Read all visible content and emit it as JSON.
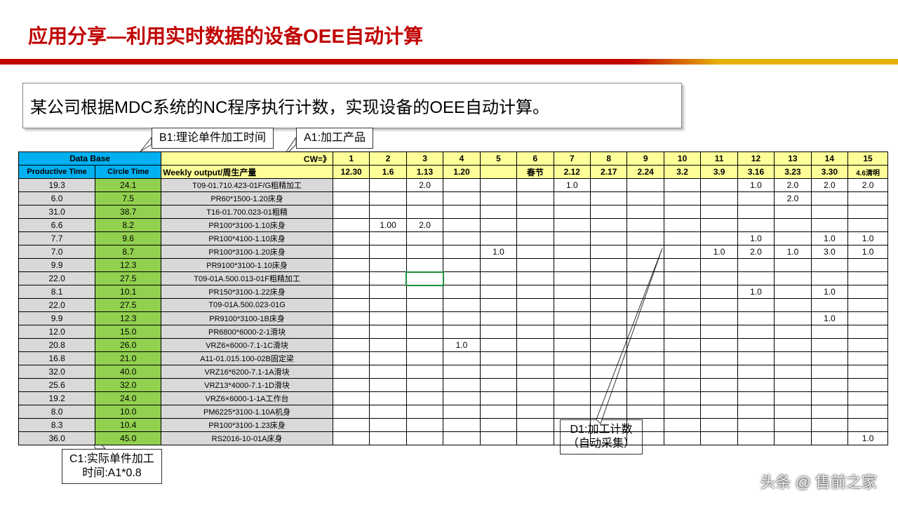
{
  "title": "应用分享—利用实时数据的设备OEE自动计算",
  "description": "某公司根据MDC系统的NC程序执行计数，实现设备的OEE自动计算。",
  "callouts": {
    "b1": "B1:理论单件加工时间",
    "a1": "A1:加工产品",
    "c1": "C1:实际单件加工\n时间:A1*0.8",
    "d1": "D1:加工计数\n（自动采集）"
  },
  "table": {
    "header_labels": {
      "data_base": "Data Base",
      "productive_time": "Productive Time",
      "circle_time": "Circle Time",
      "weekly_output": "Weekly output/周生产量",
      "cw_label": "CW=》"
    },
    "cw_numbers": [
      "1",
      "2",
      "3",
      "4",
      "5",
      "6",
      "7",
      "8",
      "9",
      "10",
      "11",
      "12",
      "13",
      "14",
      "15"
    ],
    "cw_dates": [
      "12.30",
      "1.6",
      "1.13",
      "1.20",
      "",
      "春节",
      "2.12",
      "2.17",
      "2.24",
      "3.2",
      "3.9",
      "3.16",
      "3.23",
      "3.30",
      "4.6清明"
    ],
    "colors": {
      "header_blue": "#00b0f0",
      "header_yellow": "#ffff99",
      "grey": "#d9d9d9",
      "green": "#92d050",
      "border": "#000000"
    },
    "rows": [
      {
        "pt": "19.3",
        "ct": "24.1",
        "wo": "T09-01.710.423-01F/G粗精加工",
        "v": [
          "",
          "",
          "2.0",
          "",
          "",
          "",
          "1.0",
          "",
          "",
          "",
          "",
          "1.0",
          "2.0",
          "2.0",
          "2.0"
        ]
      },
      {
        "pt": "6.0",
        "ct": "7.5",
        "wo": "PR60*1500-1.20床身",
        "v": [
          "",
          "",
          "",
          "",
          "",
          "",
          "",
          "",
          "",
          "",
          "",
          "",
          "2.0",
          "",
          ""
        ]
      },
      {
        "pt": "31.0",
        "ct": "38.7",
        "wo": "T16-01.700.023-01粗精",
        "v": [
          "",
          "",
          "",
          "",
          "",
          "",
          "",
          "",
          "",
          "",
          "",
          "",
          "",
          "",
          ""
        ]
      },
      {
        "pt": "6.6",
        "ct": "8.2",
        "wo": "PR100*3100-1.10床身",
        "v": [
          "",
          "1.00",
          "2.0",
          "",
          "",
          "",
          "",
          "",
          "",
          "",
          "",
          "",
          "",
          "",
          ""
        ]
      },
      {
        "pt": "7.7",
        "ct": "9.6",
        "wo": "PR100*4100-1.10床身",
        "v": [
          "",
          "",
          "",
          "",
          "",
          "",
          "",
          "",
          "",
          "",
          "",
          "1.0",
          "",
          "1.0",
          "1.0"
        ]
      },
      {
        "pt": "7.0",
        "ct": "8.7",
        "wo": "PR100*3100-1.20床身",
        "v": [
          "",
          "",
          "",
          "",
          "1.0",
          "",
          "",
          "",
          "",
          "",
          "1.0",
          "2.0",
          "1.0",
          "3.0",
          "1.0"
        ]
      },
      {
        "pt": "9.9",
        "ct": "12.3",
        "wo": "PR9100*3100-1.10床身",
        "v": [
          "",
          "",
          "",
          "",
          "",
          "",
          "",
          "",
          "",
          "",
          "",
          "",
          "",
          "",
          ""
        ]
      },
      {
        "pt": "22.0",
        "ct": "27.5",
        "wo": "T09-01A.500.013-01F粗精加工",
        "v": [
          "",
          "",
          "",
          "",
          "",
          "",
          "",
          "",
          "",
          "",
          "",
          "",
          "",
          "",
          ""
        ],
        "sel": 2
      },
      {
        "pt": "8.1",
        "ct": "10.1",
        "wo": "PR150*3100-1.22床身",
        "v": [
          "",
          "",
          "",
          "",
          "",
          "",
          "",
          "",
          "",
          "",
          "",
          "1.0",
          "",
          "1.0",
          ""
        ]
      },
      {
        "pt": "22.0",
        "ct": "27.5",
        "wo": "T09-01A.500.023-01G",
        "v": [
          "",
          "",
          "",
          "",
          "",
          "",
          "",
          "",
          "",
          "",
          "",
          "",
          "",
          "",
          ""
        ]
      },
      {
        "pt": "9.9",
        "ct": "12.3",
        "wo": "PR9100*3100-1B床身",
        "v": [
          "",
          "",
          "",
          "",
          "",
          "",
          "",
          "",
          "",
          "",
          "",
          "",
          "",
          "1.0",
          ""
        ]
      },
      {
        "pt": "12.0",
        "ct": "15.0",
        "wo": "PR6800*6000-2-1滑块",
        "v": [
          "",
          "",
          "",
          "",
          "",
          "",
          "",
          "",
          "",
          "",
          "",
          "",
          "",
          "",
          ""
        ]
      },
      {
        "pt": "20.8",
        "ct": "26.0",
        "wo": "VRZ6×6000-7.1-1C滑块",
        "v": [
          "",
          "",
          "",
          "1.0",
          "",
          "",
          "",
          "",
          "",
          "",
          "",
          "",
          "",
          "",
          ""
        ]
      },
      {
        "pt": "16.8",
        "ct": "21.0",
        "wo": "A11-01.015.100-02B固定梁",
        "v": [
          "",
          "",
          "",
          "",
          "",
          "",
          "",
          "",
          "",
          "",
          "",
          "",
          "",
          "",
          ""
        ]
      },
      {
        "pt": "32.0",
        "ct": "40.0",
        "wo": "VRZ16*6200-7.1-1A滑块",
        "v": [
          "",
          "",
          "",
          "",
          "",
          "",
          "",
          "",
          "",
          "",
          "",
          "",
          "",
          "",
          ""
        ]
      },
      {
        "pt": "25.6",
        "ct": "32.0",
        "wo": "VRZ13*4000-7.1-1D滑块",
        "v": [
          "",
          "",
          "",
          "",
          "",
          "",
          "",
          "",
          "",
          "",
          "",
          "",
          "",
          "",
          ""
        ]
      },
      {
        "pt": "19.2",
        "ct": "24.0",
        "wo": "VRZ6×6000-1-1A工作台",
        "v": [
          "",
          "",
          "",
          "",
          "",
          "",
          "",
          "",
          "",
          "",
          "",
          "",
          "",
          "",
          ""
        ]
      },
      {
        "pt": "8.0",
        "ct": "10.0",
        "wo": "PM6225*3100-1.10A机身",
        "v": [
          "",
          "",
          "",
          "",
          "",
          "",
          "",
          "",
          "",
          "",
          "",
          "",
          "",
          "",
          ""
        ]
      },
      {
        "pt": "8.3",
        "ct": "10.4",
        "wo": "PR100*3100-1.23床身",
        "v": [
          "",
          "",
          "",
          "",
          "",
          "",
          "",
          "",
          "",
          "",
          "",
          "",
          "",
          "",
          ""
        ]
      },
      {
        "pt": "36.0",
        "ct": "45.0",
        "wo": "RS2016-10-01A床身",
        "v": [
          "",
          "",
          "",
          "",
          "",
          "",
          "",
          "",
          "",
          "",
          "",
          "",
          "",
          "",
          "1.0"
        ]
      }
    ]
  },
  "watermark": "头条 @ 售前之家"
}
